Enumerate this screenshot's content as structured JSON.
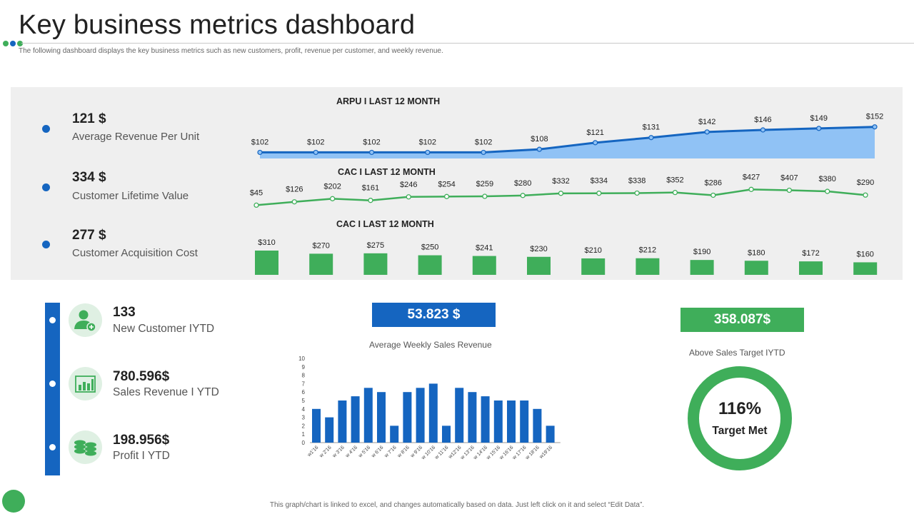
{
  "header": {
    "title": "Key business metrics dashboard",
    "subtitle": "The following dashboard displays the key business metrics such as new customers, profit, revenue per customer, and weekly revenue."
  },
  "kpis": [
    {
      "value": "121 $",
      "label": "Average Revenue Per Unit"
    },
    {
      "value": "334 $",
      "label": "Customer Lifetime Value"
    },
    {
      "value": "277 $",
      "label": "Customer Acquisition Cost"
    }
  ],
  "stats": [
    {
      "value": "133",
      "label": "New Customer IYTD",
      "icon": "user-add-icon"
    },
    {
      "value": "780.596$",
      "label": "Sales Revenue I YTD",
      "icon": "bar-chart-icon"
    },
    {
      "value": "198.956$",
      "label": "Profit I YTD",
      "icon": "coins-icon"
    }
  ],
  "weekly": {
    "box_value": "53.823 $",
    "caption": "Average  Weekly Sales Revenue"
  },
  "target": {
    "box_value": "358.087$",
    "caption": "Above  Sales Target IYTD",
    "percent": "116%",
    "status": "Target Met"
  },
  "footer": "This graph/chart is linked to excel, and changes automatically based on data. Just left click on it and select “Edit Data”.",
  "colors": {
    "blue": "#1565c0",
    "light_blue": "#90c2f5",
    "green": "#3fae5a",
    "panel_bg": "#efefef"
  },
  "chart_data": [
    {
      "type": "area",
      "title": "ARPU I LAST 12 MONTH",
      "values": [
        102,
        102,
        102,
        102,
        102,
        108,
        121,
        131,
        142,
        146,
        149,
        152
      ],
      "labels": [
        "$102",
        "$102",
        "$102",
        "$102",
        "$102",
        "$108",
        "$121",
        "$131",
        "$142",
        "$146",
        "$149",
        "$152"
      ]
    },
    {
      "type": "line",
      "title": "CAC I LAST 12 MONTH",
      "values": [
        45,
        126,
        202,
        161,
        246,
        254,
        259,
        280,
        332,
        334,
        338,
        352,
        286,
        427,
        407,
        380,
        290
      ],
      "labels": [
        "$45",
        "$126",
        "$202",
        "$161",
        "$246",
        "$254",
        "$259",
        "$280",
        "$332",
        "$334",
        "$338",
        "$352",
        "$286",
        "$427",
        "$407",
        "$380",
        "$290"
      ]
    },
    {
      "type": "bar",
      "title": "CAC I LAST 12 MONTH",
      "values": [
        310,
        270,
        275,
        250,
        241,
        230,
        210,
        212,
        190,
        180,
        172,
        160
      ],
      "labels": [
        "$310",
        "$270",
        "$275",
        "$250",
        "$241",
        "$230",
        "$210",
        "$212",
        "$190",
        "$180",
        "$172",
        "$160"
      ]
    },
    {
      "type": "bar",
      "title": "Average  Weekly Sales Revenue",
      "categories": [
        "w1'16",
        "w 2'16",
        "w 3'16",
        "w 4'16",
        "w 5'16",
        "w 6'16",
        "w 7'16",
        "w 8'16",
        "w 9'16",
        "w 10'16",
        "w 11'16",
        "w12'16",
        "w 13'16",
        "w 14'16",
        "w 15'16",
        "w 16'16",
        "w 17'16",
        "w 18'16",
        "w19'16"
      ],
      "values": [
        4,
        3,
        5,
        5.5,
        6.5,
        6,
        2,
        6,
        6.5,
        7,
        2,
        6.5,
        6,
        5.5,
        5,
        5,
        5,
        4,
        2
      ],
      "ylim": [
        0,
        10
      ],
      "yticks": [
        "0",
        "1",
        "2",
        "3",
        "4",
        "5",
        "6",
        "7",
        "8",
        "9",
        "10"
      ]
    },
    {
      "type": "pie",
      "title": "",
      "values": [
        100
      ],
      "center_label": "116%"
    }
  ]
}
